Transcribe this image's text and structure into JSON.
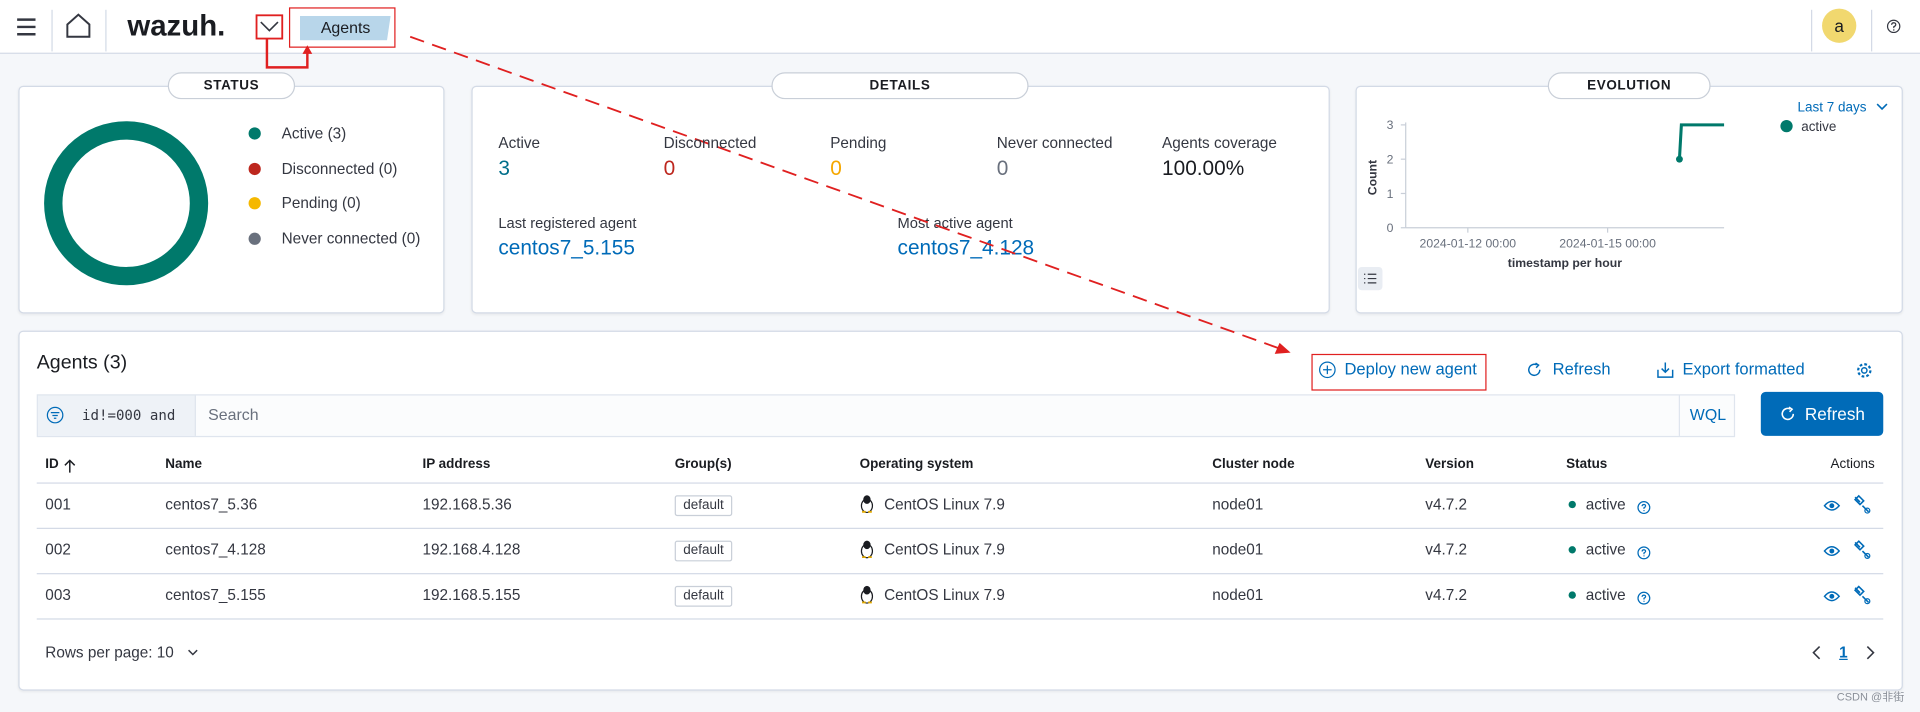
{
  "header": {
    "logo": "wazuh.",
    "breadcrumb": "Agents",
    "avatar": "a"
  },
  "status": {
    "title": "STATUS",
    "segments": [
      {
        "label": "Active (3)",
        "value": 3,
        "color": "#00796b"
      },
      {
        "label": "Disconnected (0)",
        "value": 0,
        "color": "#bd271e"
      },
      {
        "label": "Pending (0)",
        "value": 0,
        "color": "#f5b800"
      },
      {
        "label": "Never connected (0)",
        "value": 0,
        "color": "#69707d"
      }
    ]
  },
  "details": {
    "title": "DETAILS",
    "stats": [
      {
        "label": "Active",
        "value": "3",
        "color": "#006e8a"
      },
      {
        "label": "Disconnected",
        "value": "0",
        "color": "#bd271e"
      },
      {
        "label": "Pending",
        "value": "0",
        "color": "#f5a700"
      },
      {
        "label": "Never connected",
        "value": "0",
        "color": "#69707d"
      },
      {
        "label": "Agents coverage",
        "value": "100.00%",
        "color": "#1a1c21"
      }
    ],
    "last_registered_label": "Last registered agent",
    "last_registered": "centos7_5.155",
    "most_active_label": "Most active agent",
    "most_active": "centos7_4.128"
  },
  "evolution": {
    "type": "line",
    "title": "EVOLUTION",
    "range_label": "Last 7 days",
    "ylabel": "Count",
    "xlabel": "timestamp per hour",
    "ylim": [
      0,
      3
    ],
    "yticks": [
      0,
      1,
      2,
      3
    ],
    "xlim": [
      "2024-01-10 16:00",
      "2024-01-17 12:00"
    ],
    "xticks": [
      "2024-01-12 00:00",
      "2024-01-15 00:00"
    ],
    "series": [
      {
        "name": "active",
        "color": "#00796b",
        "x": [
          "2024-01-16 13:00",
          "2024-01-16 14:00",
          "2024-01-17 12:00"
        ],
        "values": [
          2,
          3,
          3
        ]
      }
    ]
  },
  "agents": {
    "title": "Agents (3)",
    "deploy": "Deploy new agent",
    "refresh_link": "Refresh",
    "export": "Export formatted",
    "filter": "id!=000 and",
    "search_placeholder": "Search",
    "wql": "WQL",
    "refresh_button": "Refresh",
    "table": {
      "columns": [
        "ID",
        "Name",
        "IP address",
        "Group(s)",
        "Operating system",
        "Cluster node",
        "Version",
        "Status",
        "Actions"
      ],
      "rows": [
        [
          "001",
          "centos7_5.36",
          "192.168.5.36",
          "default",
          "CentOS Linux 7.9",
          "node01",
          "v4.7.2",
          "active"
        ],
        [
          "002",
          "centos7_4.128",
          "192.168.4.128",
          "default",
          "CentOS Linux 7.9",
          "node01",
          "v4.7.2",
          "active"
        ],
        [
          "003",
          "centos7_5.155",
          "192.168.5.155",
          "default",
          "CentOS Linux 7.9",
          "node01",
          "v4.7.2",
          "active"
        ]
      ]
    },
    "rows_per_page": "Rows per page: 10",
    "page": "1"
  },
  "watermark": "CSDN @非街"
}
